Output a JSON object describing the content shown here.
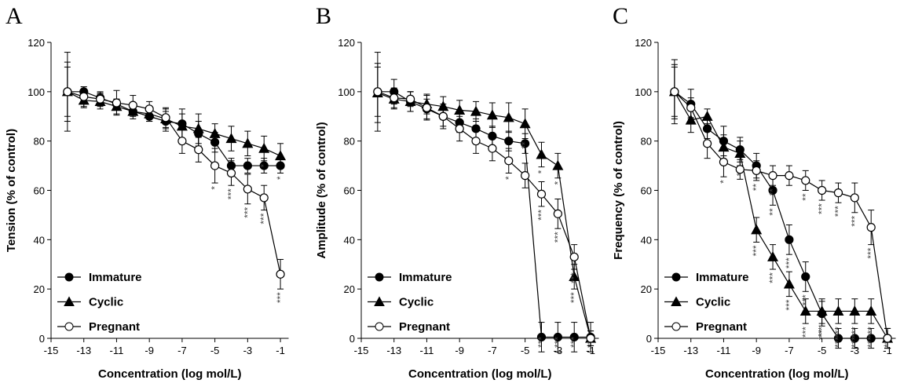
{
  "chart_data": [
    {
      "type": "line",
      "label": "A",
      "xlabel": "Concentration (log mol/L)",
      "ylabel": "Tension (% of control)",
      "x": [
        -14,
        -13,
        -12,
        -11,
        -10,
        -9,
        -8,
        -7,
        -6,
        -5,
        -4,
        -3,
        -2,
        -1
      ],
      "xlim": [
        -15,
        -0.5
      ],
      "xticks": [
        -15,
        -13,
        -11,
        -9,
        -7,
        -5,
        -3,
        -1
      ],
      "ylim": [
        0,
        120
      ],
      "yticks": [
        0,
        20,
        40,
        60,
        80,
        100,
        120
      ],
      "series": [
        {
          "name": "Immature",
          "color": "#000000",
          "marker": "circle",
          "marker_fill": "#000000",
          "values": [
            100,
            100,
            97.5,
            95,
            92,
            90,
            88,
            87,
            83,
            79.5,
            70,
            70,
            70,
            70
          ],
          "errors": [
            16,
            2,
            2,
            2,
            2,
            2,
            4,
            6,
            5,
            4,
            3,
            3,
            3,
            3
          ],
          "significance": [
            null,
            null,
            null,
            null,
            null,
            null,
            null,
            null,
            null,
            null,
            null,
            null,
            null,
            "*"
          ]
        },
        {
          "name": "Cyclic",
          "color": "#000000",
          "marker": "triangle",
          "marker_fill": "#000000",
          "values": [
            100,
            96.5,
            96,
            94,
            92,
            91,
            89,
            86,
            85,
            83,
            81,
            79,
            77,
            74
          ],
          "errors": [
            12,
            3,
            3,
            3,
            3,
            3,
            4,
            5,
            6,
            4,
            5,
            5,
            5,
            5
          ],
          "significance": [
            null,
            null,
            null,
            null,
            null,
            null,
            null,
            null,
            null,
            null,
            null,
            null,
            "*",
            null
          ]
        },
        {
          "name": "Pregnant",
          "color": "#000000",
          "marker": "circle",
          "marker_fill": "#ffffff",
          "values": [
            100,
            98,
            97,
            95.5,
            94.5,
            93,
            89.5,
            80,
            76.5,
            70,
            67,
            60.5,
            57,
            26
          ],
          "errors": [
            10,
            4,
            3,
            5,
            4,
            3,
            4,
            5,
            5,
            7,
            5,
            6,
            5,
            6
          ],
          "significance": [
            null,
            null,
            null,
            null,
            null,
            null,
            null,
            null,
            null,
            "*",
            "***",
            "***",
            "***",
            "***"
          ]
        }
      ]
    },
    {
      "type": "line",
      "label": "B",
      "xlabel": "Concentration (log mol/L)",
      "ylabel": "Amplitude (% of control)",
      "x": [
        -14,
        -13,
        -12,
        -11,
        -10,
        -9,
        -8,
        -7,
        -6,
        -5,
        -4,
        -3,
        -2,
        -1
      ],
      "xlim": [
        -15,
        -0.5
      ],
      "xticks": [
        -15,
        -13,
        -11,
        -9,
        -7,
        -5,
        -3,
        -1
      ],
      "ylim": [
        0,
        120
      ],
      "yticks": [
        0,
        20,
        40,
        60,
        80,
        100,
        120
      ],
      "series": [
        {
          "name": "Immature",
          "color": "#000000",
          "marker": "circle",
          "marker_fill": "#000000",
          "values": [
            100,
            100,
            96,
            93,
            90,
            87.5,
            85,
            82,
            80,
            79,
            0.5,
            0.5,
            0.5,
            0.5
          ],
          "errors": [
            16,
            5,
            4,
            4,
            4,
            4,
            4,
            4,
            4,
            4,
            6,
            6,
            6,
            6
          ],
          "significance": [
            null,
            null,
            null,
            null,
            null,
            null,
            null,
            null,
            null,
            null,
            "***",
            "***",
            "***",
            "***"
          ]
        },
        {
          "name": "Cyclic",
          "color": "#000000",
          "marker": "triangle",
          "marker_fill": "#000000",
          "values": [
            99.5,
            97,
            96,
            95,
            94,
            92.5,
            92,
            90.5,
            89.5,
            87,
            74.5,
            70,
            25,
            0
          ],
          "errors": [
            12,
            4,
            4,
            4,
            4,
            4,
            4,
            5,
            6,
            6,
            5,
            5,
            5,
            3
          ],
          "significance": [
            null,
            null,
            null,
            null,
            null,
            null,
            null,
            null,
            null,
            "**",
            "*",
            "*",
            "***",
            "***"
          ]
        },
        {
          "name": "Pregnant",
          "color": "#000000",
          "marker": "circle",
          "marker_fill": "#ffffff",
          "values": [
            100,
            97.5,
            97,
            93.5,
            90,
            85,
            80,
            77,
            72,
            66,
            58.5,
            50.5,
            33,
            0
          ],
          "errors": [
            10,
            4,
            3,
            5,
            5,
            5,
            5,
            5,
            5,
            5,
            5,
            6,
            5,
            3
          ],
          "significance": [
            null,
            null,
            null,
            null,
            null,
            null,
            null,
            null,
            "*",
            null,
            "***",
            "***",
            "***",
            null
          ]
        }
      ]
    },
    {
      "type": "line",
      "label": "C",
      "xlabel": "Concentration (log mol/L)",
      "ylabel": "Frequency (% of control)",
      "x": [
        -14,
        -13,
        -12,
        -11,
        -10,
        -9,
        -8,
        -7,
        -6,
        -5,
        -4,
        -3,
        -2,
        -1
      ],
      "xlim": [
        -15,
        -0.5
      ],
      "xticks": [
        -15,
        -13,
        -11,
        -9,
        -7,
        -5,
        -3,
        -1
      ],
      "ylim": [
        0,
        120
      ],
      "yticks": [
        0,
        20,
        40,
        60,
        80,
        100,
        120
      ],
      "series": [
        {
          "name": "Immature",
          "color": "#000000",
          "marker": "circle",
          "marker_fill": "#000000",
          "values": [
            100,
            95,
            85,
            80,
            76.5,
            70,
            60,
            40,
            25,
            10,
            0,
            0,
            0,
            0
          ],
          "errors": [
            11,
            6,
            4,
            6,
            5,
            5,
            6,
            6,
            6,
            5,
            4,
            4,
            4,
            4
          ],
          "significance": [
            null,
            null,
            null,
            null,
            null,
            null,
            "**",
            "***",
            "***",
            "***",
            "***",
            "***",
            "***",
            null
          ]
        },
        {
          "name": "Cyclic",
          "color": "#000000",
          "marker": "triangle",
          "marker_fill": "#000000",
          "values": [
            100,
            88.5,
            90,
            77.5,
            75,
            44,
            33,
            22,
            11,
            11,
            11,
            11,
            11,
            0
          ],
          "errors": [
            13,
            5,
            3,
            5,
            5,
            5,
            5,
            5,
            5,
            5,
            5,
            5,
            5,
            4
          ],
          "significance": [
            null,
            null,
            null,
            null,
            "**",
            "***",
            "***",
            "***",
            "***",
            "***",
            "***",
            "***",
            "***",
            "***"
          ]
        },
        {
          "name": "Pregnant",
          "color": "#000000",
          "marker": "circle",
          "marker_fill": "#ffffff",
          "values": [
            100,
            93.5,
            79,
            71.5,
            68.5,
            68,
            66,
            66,
            64,
            60,
            59,
            57,
            45,
            0
          ],
          "errors": [
            10,
            4,
            6,
            6,
            4,
            4,
            4,
            4,
            4,
            4,
            4,
            6,
            7,
            4
          ],
          "significance": [
            null,
            null,
            null,
            "*",
            null,
            "**",
            "**",
            null,
            "**",
            "***",
            "***",
            "***",
            "***",
            null
          ]
        }
      ]
    }
  ]
}
